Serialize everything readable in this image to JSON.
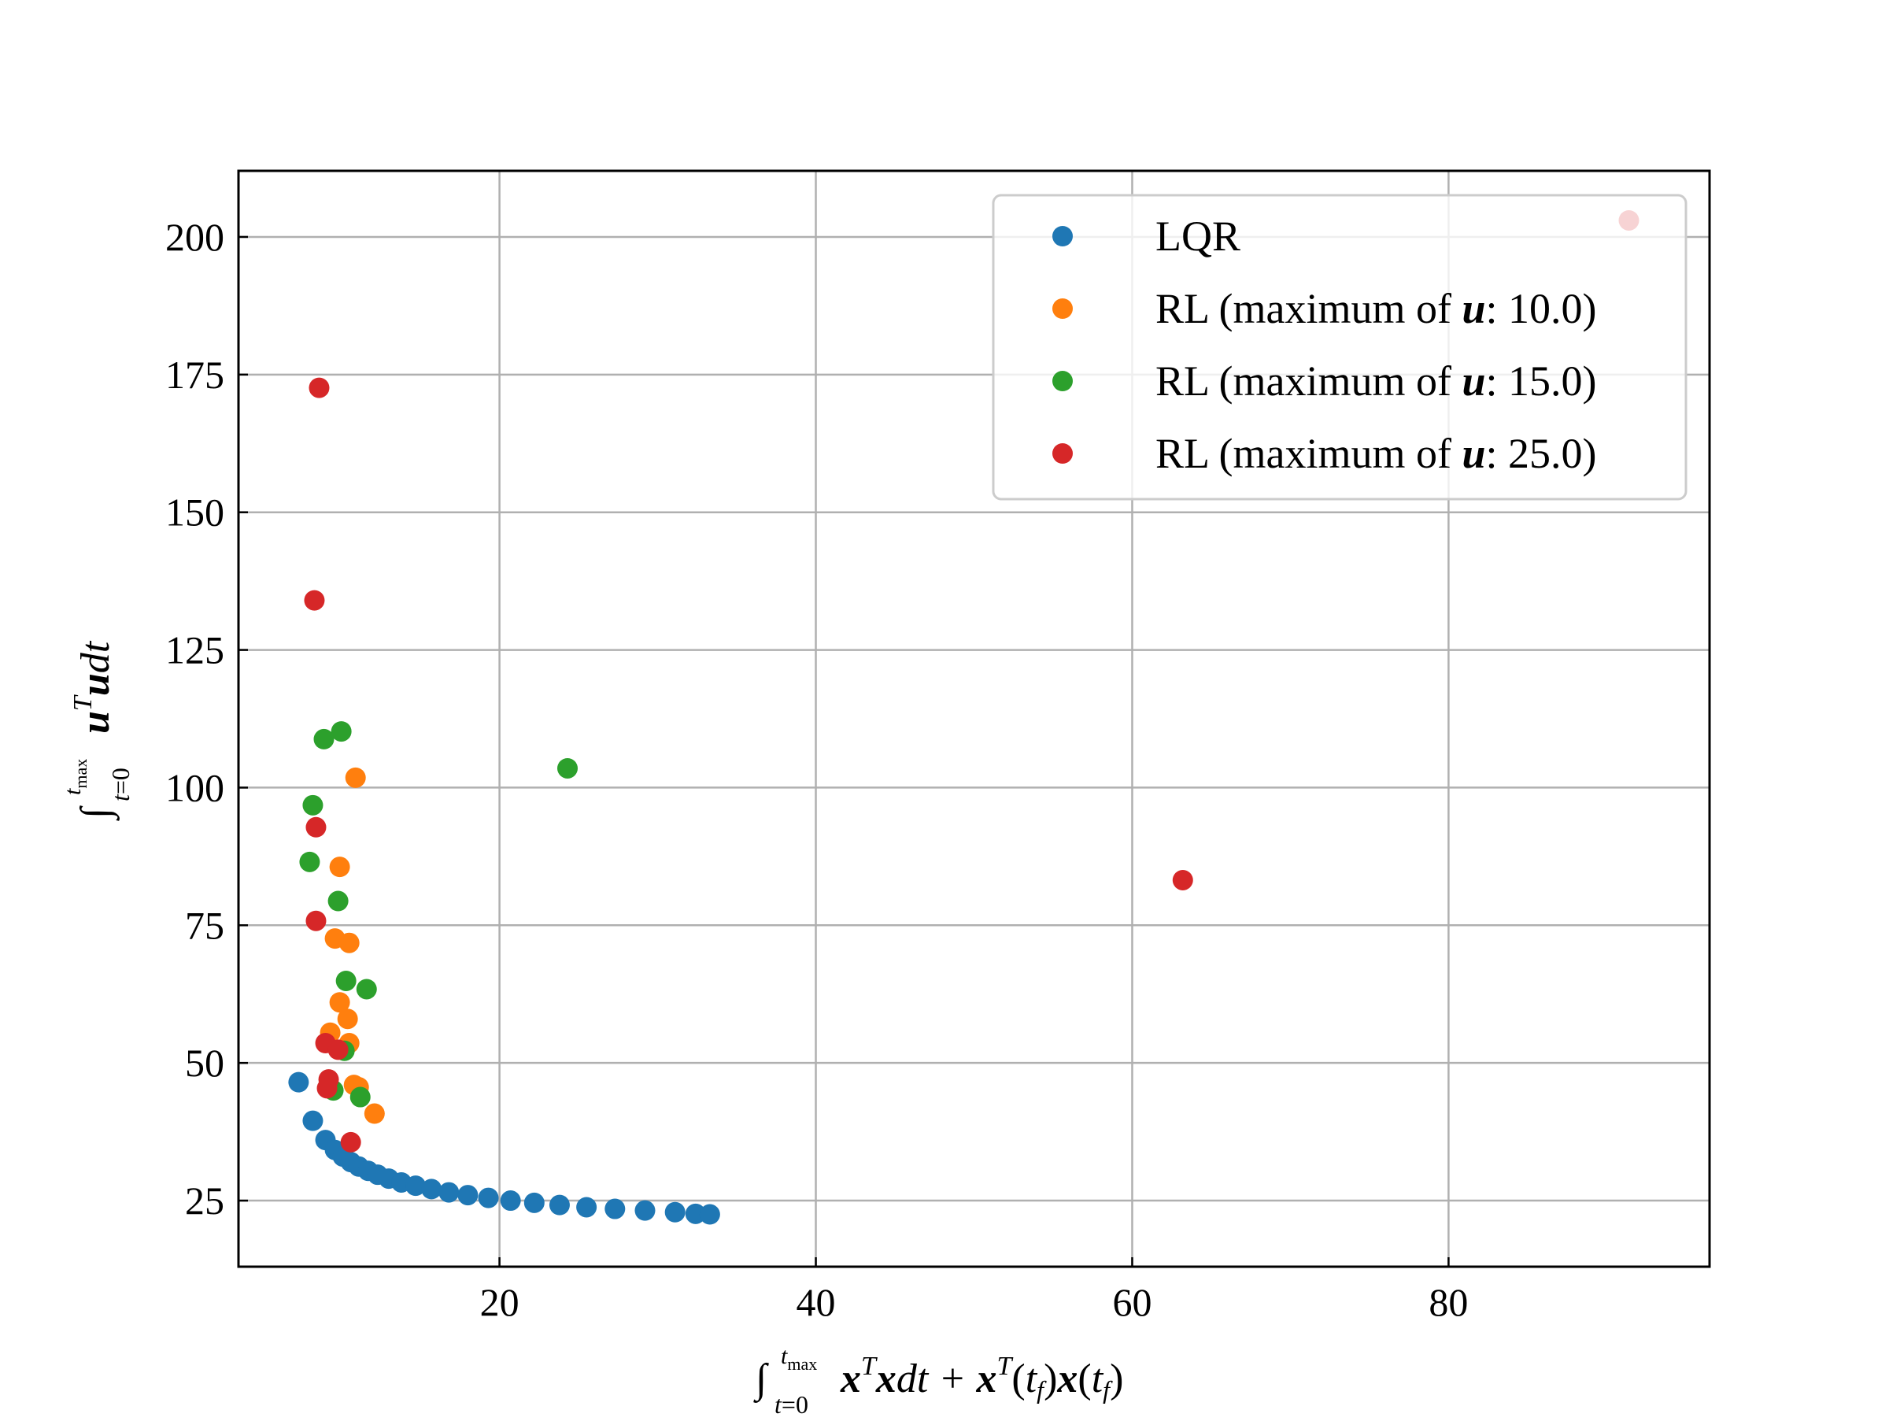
{
  "chart_data": {
    "type": "scatter",
    "title": "",
    "xlabel": "∫_{t=0}^{t_max} xᵀx dt + xᵀ(t_f)x(t_f)",
    "ylabel": "∫_{t=0}^{t_max} uᵀu dt",
    "xlim": [
      3.5,
      96.5
    ],
    "ylim": [
      13,
      212
    ],
    "x_ticks": [
      20,
      40,
      60,
      80
    ],
    "y_ticks": [
      25,
      50,
      75,
      100,
      125,
      150,
      175,
      200
    ],
    "grid": true,
    "legend_position": "top-right",
    "series": [
      {
        "name": "LQR",
        "color": "#1f77b4",
        "points": [
          [
            7.3,
            46.5
          ],
          [
            8.2,
            39.5
          ],
          [
            9.0,
            36.0
          ],
          [
            9.6,
            34.2
          ],
          [
            10.1,
            33.0
          ],
          [
            10.6,
            32.0
          ],
          [
            11.1,
            31.2
          ],
          [
            11.7,
            30.4
          ],
          [
            12.3,
            29.7
          ],
          [
            13.0,
            29.0
          ],
          [
            13.8,
            28.3
          ],
          [
            14.7,
            27.7
          ],
          [
            15.7,
            27.1
          ],
          [
            16.8,
            26.5
          ],
          [
            18.0,
            26.0
          ],
          [
            19.3,
            25.5
          ],
          [
            20.7,
            25.0
          ],
          [
            22.2,
            24.6
          ],
          [
            23.8,
            24.2
          ],
          [
            25.5,
            23.8
          ],
          [
            27.3,
            23.5
          ],
          [
            29.2,
            23.2
          ],
          [
            31.1,
            22.9
          ],
          [
            32.4,
            22.6
          ],
          [
            33.3,
            22.5
          ]
        ]
      },
      {
        "name": "RL (maximum of u: 10.0)",
        "color": "#ff7f0e",
        "points": [
          [
            10.9,
            101.8
          ],
          [
            9.9,
            85.6
          ],
          [
            9.6,
            72.6
          ],
          [
            10.5,
            71.8
          ],
          [
            9.9,
            61.0
          ],
          [
            10.4,
            58.0
          ],
          [
            9.3,
            55.5
          ],
          [
            10.5,
            53.6
          ],
          [
            10.8,
            46.0
          ],
          [
            11.1,
            45.6
          ],
          [
            12.1,
            40.8
          ]
        ]
      },
      {
        "name": "RL (maximum of u: 15.0)",
        "color": "#2ca02c",
        "points": [
          [
            10.0,
            110.2
          ],
          [
            8.9,
            108.8
          ],
          [
            24.3,
            103.5
          ],
          [
            8.2,
            96.8
          ],
          [
            8.0,
            86.5
          ],
          [
            9.8,
            79.4
          ],
          [
            10.3,
            64.9
          ],
          [
            11.6,
            63.4
          ],
          [
            10.2,
            52.2
          ],
          [
            9.5,
            45.0
          ],
          [
            11.2,
            43.8
          ]
        ]
      },
      {
        "name": "RL (maximum of u: 25.0)",
        "color": "#d62728",
        "points": [
          [
            91.4,
            203.0
          ],
          [
            8.6,
            172.6
          ],
          [
            8.3,
            134.0
          ],
          [
            8.4,
            92.8
          ],
          [
            63.2,
            83.2
          ],
          [
            8.4,
            75.8
          ],
          [
            9.0,
            53.6
          ],
          [
            9.8,
            52.4
          ],
          [
            9.2,
            47.0
          ],
          [
            9.1,
            45.4
          ],
          [
            10.6,
            35.6
          ]
        ]
      }
    ]
  }
}
